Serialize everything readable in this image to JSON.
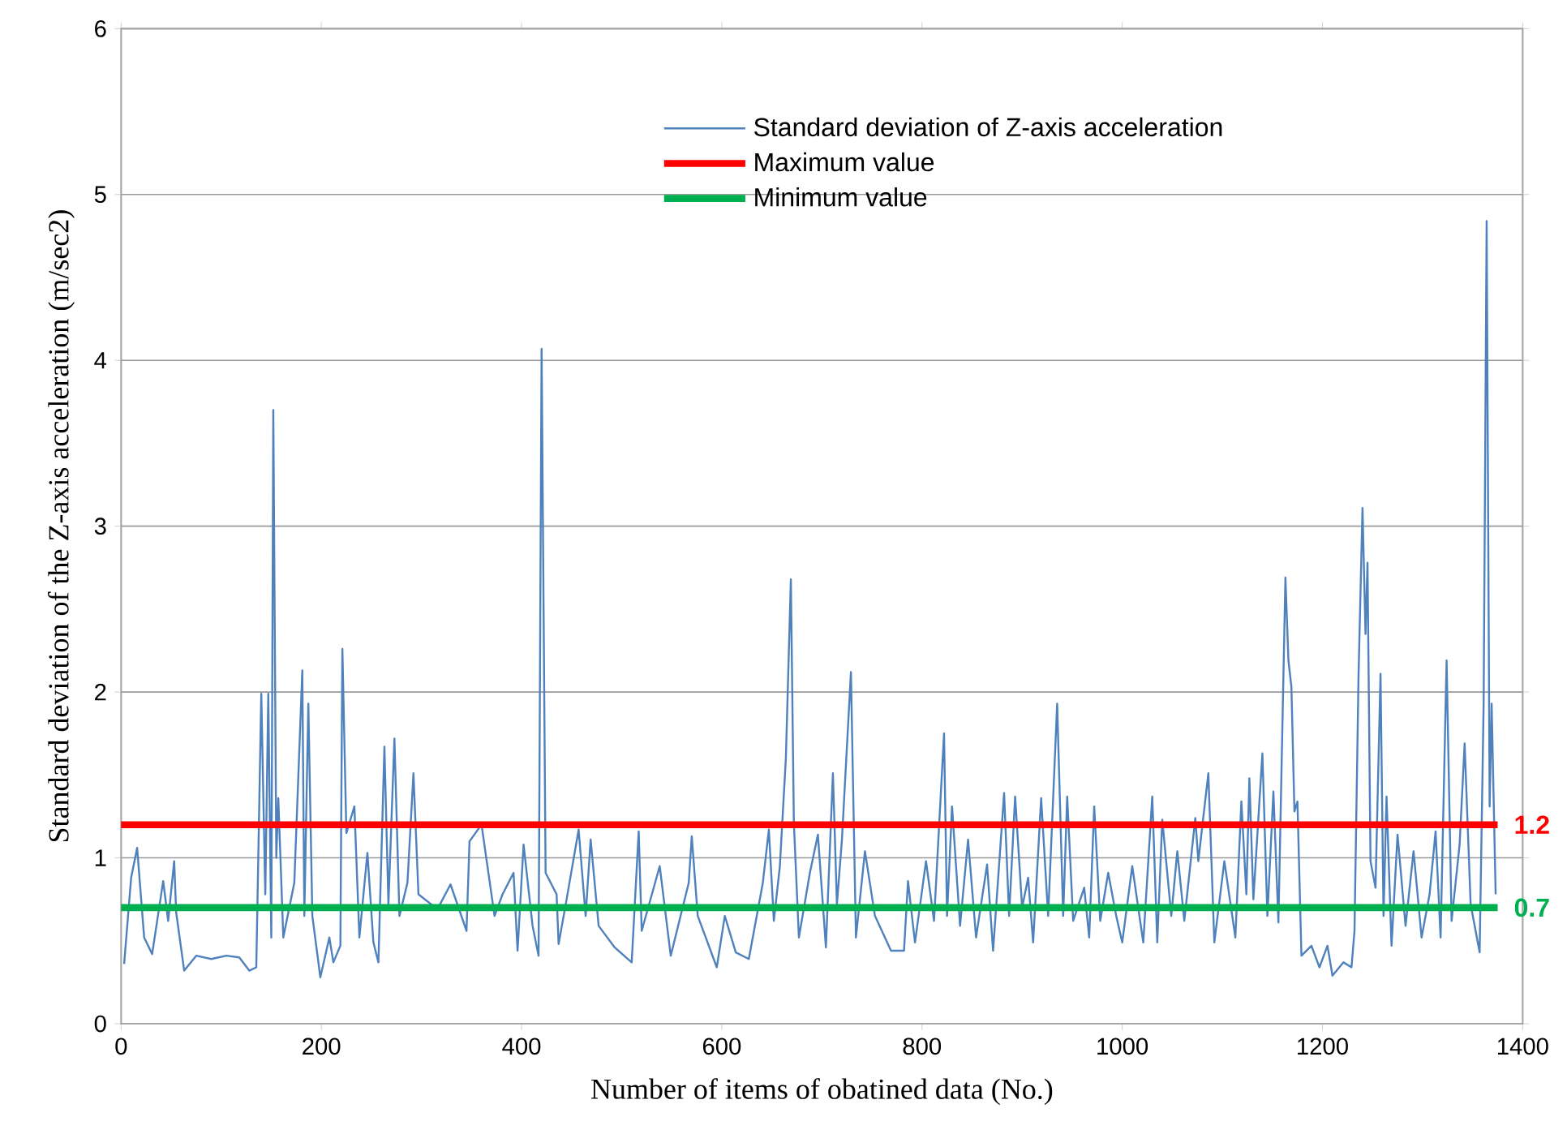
{
  "chart_data": {
    "type": "line",
    "xlabel": "Number of items of obatined data (No.)",
    "ylabel": "Standard deviation of the Z-axis acceleration  (m/sec2)",
    "xlim": [
      0,
      1400
    ],
    "ylim": [
      0,
      6
    ],
    "xticks": [
      0,
      200,
      400,
      600,
      800,
      1000,
      1200,
      1400
    ],
    "yticks": [
      0,
      1,
      2,
      3,
      4,
      5,
      6
    ],
    "grid": "y",
    "legend": "top",
    "marker": "none",
    "line_style": "solid",
    "series": [
      {
        "name": "Standard deviation of Z-axis acceleration",
        "color": "#4f81bd",
        "x": [
          3,
          10,
          16,
          23,
          31,
          42,
          47,
          53,
          55,
          63,
          75,
          90,
          105,
          118,
          128,
          135,
          140,
          144,
          147,
          150,
          152,
          155,
          157,
          162,
          173,
          181,
          183,
          187,
          191,
          199,
          208,
          212,
          219,
          221,
          225,
          233,
          238,
          246,
          252,
          257,
          263,
          267,
          273,
          278,
          286,
          292,
          297,
          316,
          329,
          345,
          348,
          360,
          373,
          381,
          392,
          396,
          402,
          411,
          417,
          420,
          424,
          435,
          437,
          445,
          457,
          464,
          469,
          477,
          493,
          510,
          517,
          520,
          538,
          549,
          567,
          570,
          576,
          595,
          603,
          614,
          627,
          641,
          647,
          652,
          658,
          664,
          669,
          672,
          677,
          688,
          696,
          704,
          711,
          715,
          720,
          729,
          734,
          743,
          753,
          769,
          782,
          786,
          793,
          804,
          812,
          822,
          825,
          830,
          838,
          846,
          854,
          865,
          871,
          882,
          887,
          893,
          900,
          906,
          911,
          919,
          926,
          935,
          941,
          945,
          951,
          962,
          967,
          972,
          978,
          986,
          994,
          1000,
          1010,
          1021,
          1030,
          1035,
          1040,
          1049,
          1055,
          1062,
          1073,
          1076,
          1086,
          1092,
          1102,
          1113,
          1119,
          1124,
          1127,
          1131,
          1140,
          1145,
          1151,
          1156,
          1163,
          1166,
          1169,
          1172,
          1175,
          1179,
          1189,
          1197,
          1205,
          1210,
          1221,
          1229,
          1232,
          1236,
          1240,
          1243,
          1245,
          1248,
          1253,
          1258,
          1261,
          1264,
          1269,
          1275,
          1283,
          1291,
          1299,
          1307,
          1313,
          1318,
          1324,
          1329,
          1337,
          1342,
          1348,
          1357,
          1361,
          1364,
          1367,
          1369,
          1373
        ],
        "values": [
          0.36,
          0.88,
          1.06,
          0.52,
          0.42,
          0.86,
          0.62,
          0.98,
          0.67,
          0.32,
          0.41,
          0.39,
          0.41,
          0.4,
          0.32,
          0.34,
          1.99,
          0.78,
          1.99,
          0.52,
          3.7,
          1.0,
          1.36,
          0.52,
          0.85,
          2.13,
          0.65,
          1.93,
          0.65,
          0.28,
          0.52,
          0.37,
          0.47,
          2.26,
          1.15,
          1.31,
          0.52,
          1.03,
          0.49,
          0.37,
          1.67,
          0.72,
          1.72,
          0.65,
          0.85,
          1.51,
          0.78,
          0.69,
          0.84,
          0.56,
          1.1,
          1.2,
          0.65,
          0.78,
          0.91,
          0.44,
          1.08,
          0.59,
          0.41,
          4.07,
          0.91,
          0.78,
          0.48,
          0.75,
          1.17,
          0.65,
          1.11,
          0.59,
          0.46,
          0.37,
          1.16,
          0.56,
          0.95,
          0.41,
          0.85,
          1.13,
          0.65,
          0.34,
          0.65,
          0.43,
          0.39,
          0.85,
          1.17,
          0.62,
          0.95,
          1.6,
          2.68,
          1.21,
          0.52,
          0.91,
          1.14,
          0.46,
          1.51,
          0.72,
          1.11,
          2.12,
          0.52,
          1.04,
          0.65,
          0.44,
          0.44,
          0.86,
          0.49,
          0.98,
          0.62,
          1.75,
          0.65,
          1.31,
          0.59,
          1.11,
          0.52,
          0.96,
          0.44,
          1.39,
          0.65,
          1.37,
          0.7,
          0.88,
          0.49,
          1.36,
          0.65,
          1.93,
          0.65,
          1.37,
          0.62,
          0.82,
          0.52,
          1.31,
          0.62,
          0.91,
          0.65,
          0.49,
          0.95,
          0.49,
          1.37,
          0.49,
          1.23,
          0.65,
          1.04,
          0.62,
          1.24,
          0.98,
          1.51,
          0.49,
          0.98,
          0.52,
          1.34,
          0.78,
          1.48,
          0.75,
          1.63,
          0.65,
          1.4,
          0.61,
          2.69,
          2.19,
          2.03,
          1.28,
          1.34,
          0.41,
          0.47,
          0.34,
          0.47,
          0.29,
          0.37,
          0.34,
          0.56,
          2.09,
          3.11,
          2.35,
          2.78,
          0.98,
          0.82,
          2.11,
          0.65,
          1.37,
          0.47,
          1.14,
          0.59,
          1.04,
          0.52,
          0.78,
          1.16,
          0.52,
          2.19,
          0.62,
          1.08,
          1.69,
          0.72,
          0.43,
          1.93,
          4.84,
          1.31,
          1.93,
          0.78
        ]
      },
      {
        "name": "Maximum value",
        "color": "#ff0000",
        "x": [
          0,
          1375
        ],
        "values": [
          1.2,
          1.2
        ]
      },
      {
        "name": "Minimum value",
        "color": "#00b050",
        "x": [
          0,
          1375
        ],
        "values": [
          0.7,
          0.7
        ]
      }
    ],
    "annotations": [
      {
        "text": "1.2",
        "x": 1375,
        "y": 1.2
      },
      {
        "text": "0.7",
        "x": 1375,
        "y": 0.7
      }
    ]
  }
}
